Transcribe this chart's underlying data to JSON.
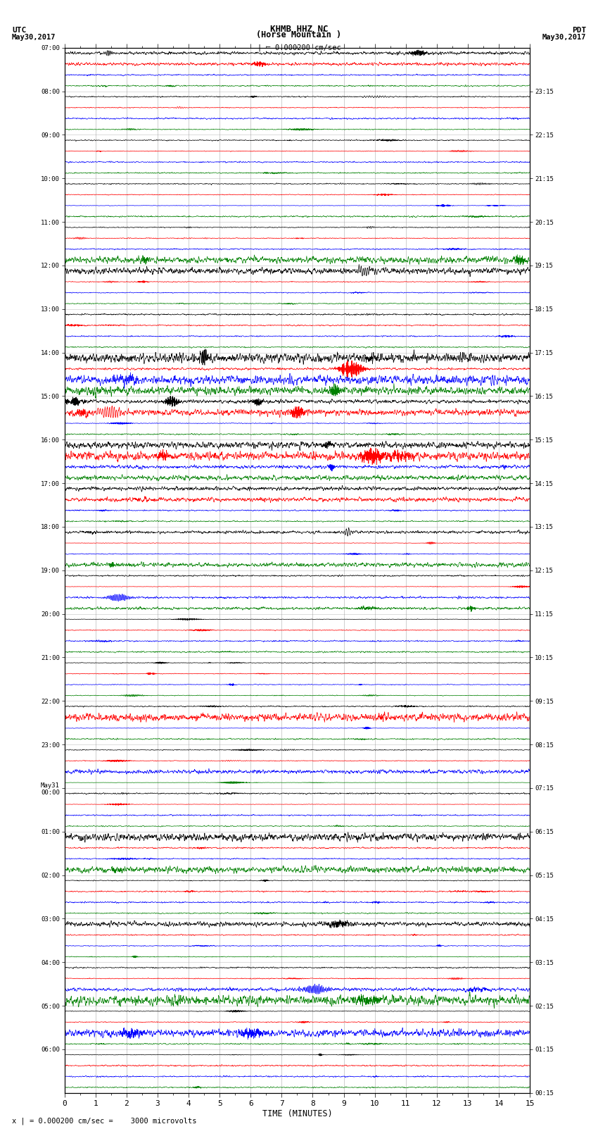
{
  "title_line1": "KHMB HHZ NC",
  "title_line2": "(Horse Mountain )",
  "title_line3": "| = 0.000200 cm/sec",
  "left_header": "UTC",
  "left_date": "May30,2017",
  "right_header": "PDT",
  "right_date": "May30,2017",
  "xlabel": "TIME (MINUTES)",
  "scale_text": "x | = 0.000200 cm/sec =    3000 microvolts",
  "xlim": [
    0,
    15
  ],
  "xticks": [
    0,
    1,
    2,
    3,
    4,
    5,
    6,
    7,
    8,
    9,
    10,
    11,
    12,
    13,
    14,
    15
  ],
  "bg_color": "#ffffff",
  "line_colors": [
    "black",
    "red",
    "blue",
    "green"
  ],
  "hour_blocks": 24,
  "left_labels": [
    "07:00",
    "08:00",
    "09:00",
    "10:00",
    "11:00",
    "12:00",
    "13:00",
    "14:00",
    "15:00",
    "16:00",
    "17:00",
    "18:00",
    "19:00",
    "20:00",
    "21:00",
    "22:00",
    "23:00",
    "May31\n00:00",
    "01:00",
    "02:00",
    "03:00",
    "04:00",
    "05:00",
    "06:00"
  ],
  "right_labels": [
    "00:15",
    "01:15",
    "02:15",
    "03:15",
    "04:15",
    "05:15",
    "06:15",
    "07:15",
    "08:15",
    "09:15",
    "10:15",
    "11:15",
    "12:15",
    "13:15",
    "14:15",
    "15:15",
    "16:15",
    "17:15",
    "18:15",
    "19:15",
    "20:15",
    "21:15",
    "22:15",
    "23:15"
  ],
  "n_hours": 24,
  "traces_per_hour": 4,
  "special_amplitudes": {
    "7_0": 3.0,
    "7_1": 2.5,
    "11_3": 5.0,
    "12_0": 6.0,
    "14_0": 9.0,
    "14_1": 12.0,
    "14_2": 8.0,
    "14_3": 7.0,
    "15_0": 5.0,
    "15_1": 6.0,
    "16_0": 5.0,
    "16_1": 8.0,
    "16_2": 4.0,
    "16_3": 3.0,
    "17_0": 3.0,
    "17_1": 3.0,
    "18_0": 4.0,
    "18_3": 3.0,
    "19_2": 3.5,
    "19_3": 3.0,
    "22_1": 5.0,
    "23_2": 3.0,
    "1_0": 5.0,
    "1_3": 4.0,
    "3_0": 4.0,
    "4_2": 5.0,
    "4_3": 8.0,
    "5_2": 6.0
  }
}
